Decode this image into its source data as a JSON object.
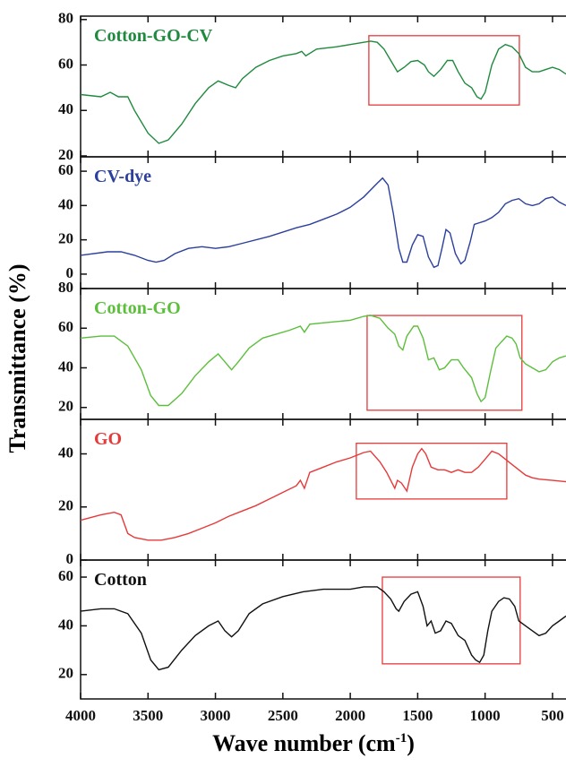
{
  "figure": {
    "ylabel": "Transmittance (%)",
    "xlabel": {
      "text": "Wave number (cm",
      "sup": "-1",
      "end": ")"
    }
  },
  "chart_data": [
    {
      "type": "line",
      "title": "Cotton-GO-CV",
      "color": "#1f8a3e",
      "xlim": [
        4000,
        400
      ],
      "xticks": [
        4000,
        3500,
        3000,
        2500,
        2000,
        1500,
        1000,
        500
      ],
      "ylim": [
        19.6,
        81.5
      ],
      "yticks": [
        20,
        40,
        60,
        80
      ],
      "highlight": {
        "x": [
          1862,
          746
        ],
        "y": [
          42.4,
          72.9
        ]
      },
      "x": [
        4000,
        3850,
        3780,
        3720,
        3650,
        3600,
        3500,
        3420,
        3350,
        3250,
        3150,
        3050,
        2980,
        2900,
        2850,
        2800,
        2700,
        2600,
        2500,
        2400,
        2360,
        2330,
        2250,
        2100,
        2000,
        1900,
        1850,
        1800,
        1750,
        1700,
        1650,
        1600,
        1550,
        1500,
        1450,
        1420,
        1380,
        1330,
        1280,
        1240,
        1200,
        1150,
        1100,
        1060,
        1030,
        1000,
        950,
        900,
        850,
        800,
        750,
        700,
        650,
        600,
        550,
        500,
        450,
        400
      ],
      "values": [
        47,
        46,
        48,
        46,
        46,
        40,
        30,
        25.5,
        27,
        34,
        43,
        50,
        53,
        51,
        50,
        54,
        59,
        62,
        64,
        65,
        66,
        64,
        67,
        68,
        69,
        70,
        70.5,
        70,
        67,
        62,
        57,
        59,
        61.5,
        62,
        60,
        57,
        55,
        58,
        62,
        62,
        57,
        52,
        50,
        46,
        45,
        48,
        60,
        67,
        69,
        68,
        65,
        59,
        57,
        57,
        58,
        59,
        58,
        56
      ]
    },
    {
      "type": "line",
      "title": "CV-dye",
      "color": "#2b3f9c",
      "xlim": [
        4000,
        400
      ],
      "xticks": [
        4000,
        3500,
        3000,
        2500,
        2000,
        1500,
        1000,
        500
      ],
      "ylim": [
        -8.4,
        68.4
      ],
      "yticks": [
        0,
        20,
        40,
        60
      ],
      "x": [
        4000,
        3800,
        3700,
        3600,
        3500,
        3440,
        3380,
        3300,
        3200,
        3100,
        3000,
        2900,
        2800,
        2600,
        2400,
        2300,
        2200,
        2100,
        2000,
        1900,
        1800,
        1760,
        1720,
        1680,
        1640,
        1610,
        1580,
        1540,
        1500,
        1460,
        1420,
        1380,
        1350,
        1320,
        1290,
        1260,
        1220,
        1180,
        1150,
        1110,
        1080,
        1040,
        1000,
        950,
        900,
        850,
        800,
        750,
        700,
        650,
        600,
        550,
        500,
        450,
        400
      ],
      "values": [
        11,
        13,
        13,
        11,
        8,
        7,
        8,
        12,
        15,
        16,
        15,
        16,
        18,
        22,
        27,
        29,
        32,
        35,
        39,
        45,
        53,
        56,
        52,
        35,
        15,
        7,
        7,
        17,
        23,
        22,
        10,
        4,
        5,
        15,
        26,
        24,
        12,
        6,
        8,
        19,
        29,
        30,
        31,
        33,
        36,
        41,
        43,
        44,
        41,
        40,
        41,
        44,
        45,
        42,
        40
      ]
    },
    {
      "type": "line",
      "title": "Cotton-GO",
      "color": "#5cbf3c",
      "xlim": [
        4000,
        400
      ],
      "xticks": [
        4000,
        3500,
        3000,
        2500,
        2000,
        1500,
        1000,
        500
      ],
      "ylim": [
        14,
        80
      ],
      "yticks": [
        20,
        40,
        60,
        80
      ],
      "highlight": {
        "x": [
          1875,
          727
        ],
        "y": [
          18.6,
          66.4
        ]
      },
      "x": [
        4000,
        3850,
        3750,
        3650,
        3550,
        3480,
        3420,
        3350,
        3250,
        3150,
        3050,
        2980,
        2930,
        2880,
        2830,
        2750,
        2650,
        2550,
        2450,
        2370,
        2340,
        2300,
        2150,
        2000,
        1900,
        1850,
        1780,
        1720,
        1670,
        1640,
        1610,
        1580,
        1530,
        1500,
        1460,
        1420,
        1380,
        1340,
        1300,
        1250,
        1200,
        1160,
        1100,
        1060,
        1030,
        1000,
        960,
        920,
        880,
        840,
        800,
        770,
        740,
        700,
        650,
        600,
        550,
        500,
        450,
        400
      ],
      "values": [
        55,
        56,
        56,
        51,
        39,
        26,
        21,
        21,
        27,
        36,
        43,
        47,
        43,
        39,
        43,
        50,
        55,
        57,
        59,
        61,
        58,
        62,
        63,
        64,
        66,
        66.5,
        65,
        60,
        57,
        51,
        49,
        56,
        61,
        61,
        55,
        44,
        45,
        39,
        40,
        44,
        44,
        40,
        35,
        27,
        23,
        25,
        38,
        50,
        53,
        56,
        55,
        52,
        45,
        42,
        40,
        38,
        39,
        43,
        45,
        46
      ]
    },
    {
      "type": "line",
      "title": "GO",
      "color": "#e63a3a",
      "xlim": [
        4000,
        400
      ],
      "xticks": [
        4000,
        3500,
        3000,
        2500,
        2000,
        1500,
        1000,
        500
      ],
      "ylim": [
        0,
        53
      ],
      "yticks": [
        0,
        20,
        40
      ],
      "highlight": {
        "x": [
          1955,
          839
        ],
        "y": [
          23,
          44
        ]
      },
      "x": [
        4000,
        3850,
        3750,
        3700,
        3650,
        3600,
        3500,
        3400,
        3300,
        3200,
        3100,
        3000,
        2900,
        2800,
        2700,
        2600,
        2500,
        2400,
        2370,
        2340,
        2300,
        2200,
        2100,
        2000,
        1900,
        1850,
        1780,
        1730,
        1700,
        1670,
        1650,
        1620,
        1580,
        1540,
        1500,
        1470,
        1440,
        1400,
        1350,
        1300,
        1250,
        1200,
        1150,
        1100,
        1050,
        1000,
        950,
        900,
        850,
        800,
        750,
        700,
        650,
        600,
        500,
        400
      ],
      "values": [
        15,
        17,
        18,
        17,
        10,
        8.5,
        7.5,
        7.5,
        8.5,
        10,
        12,
        14,
        16.5,
        18.5,
        20.5,
        23,
        25.5,
        28,
        30,
        27,
        33,
        35,
        37,
        38.5,
        40.5,
        41,
        37,
        33,
        30,
        27,
        30,
        29,
        26,
        35,
        40,
        42,
        40,
        35,
        34,
        34,
        33,
        34,
        33,
        33,
        35,
        38,
        41,
        40,
        38,
        36,
        34,
        32,
        31,
        30.5,
        30,
        29.5
      ]
    },
    {
      "type": "line",
      "title": "Cotton",
      "color": "#111111",
      "xlim": [
        4000,
        400
      ],
      "xticks": [
        4000,
        3500,
        3000,
        2500,
        2000,
        1500,
        1000,
        500
      ],
      "ylim": [
        10,
        67
      ],
      "yticks": [
        20,
        40,
        60
      ],
      "highlight": {
        "x": [
          1762,
          740
        ],
        "y": [
          24.4,
          60
        ]
      },
      "x": [
        4000,
        3850,
        3750,
        3650,
        3550,
        3480,
        3420,
        3350,
        3250,
        3150,
        3050,
        2980,
        2930,
        2880,
        2830,
        2750,
        2650,
        2500,
        2350,
        2200,
        2000,
        1900,
        1800,
        1750,
        1700,
        1660,
        1640,
        1600,
        1550,
        1500,
        1460,
        1430,
        1400,
        1370,
        1330,
        1290,
        1250,
        1200,
        1150,
        1100,
        1070,
        1040,
        1010,
        980,
        950,
        900,
        860,
        820,
        780,
        750,
        700,
        650,
        600,
        550,
        500,
        450,
        400
      ],
      "values": [
        46,
        47,
        47,
        45,
        37,
        26,
        22,
        23,
        30,
        36,
        40,
        42,
        38,
        35.5,
        38,
        45,
        49,
        52,
        54,
        55,
        55,
        56,
        56,
        54,
        51,
        47,
        46,
        50,
        53,
        54,
        48,
        40,
        42,
        37,
        38,
        42,
        41,
        36,
        34,
        28,
        26,
        25,
        28,
        38,
        46,
        50,
        51.5,
        51,
        48,
        42,
        40,
        38,
        36,
        37,
        40,
        42,
        44
      ]
    }
  ]
}
